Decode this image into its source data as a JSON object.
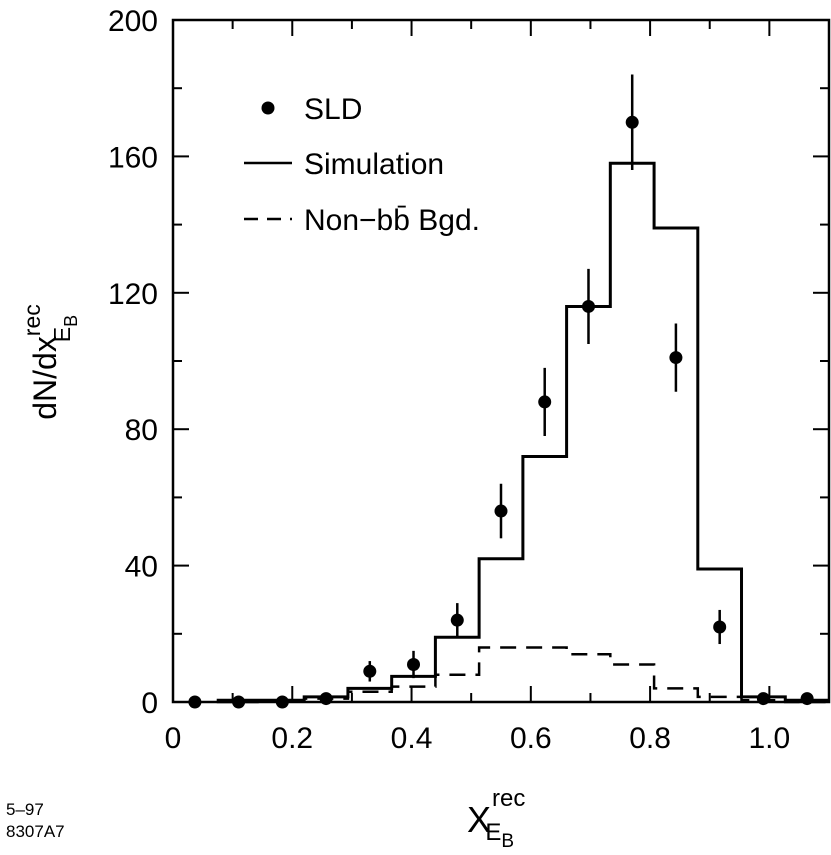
{
  "chart_data": {
    "type": "histogram+scatter",
    "title": "",
    "xlabel": {
      "base": "X",
      "sup": "rec",
      "sub": "E",
      "subsub": "B"
    },
    "ylabel": {
      "base": "dN/dx",
      "sup": "rec",
      "sub": "E",
      "subsub": "B"
    },
    "xlim": [
      0,
      1.1
    ],
    "ylim": [
      0,
      200
    ],
    "xticks": [
      0,
      0.2,
      0.4,
      0.6,
      0.8,
      1.0
    ],
    "xtick_labels": [
      "0",
      "0.2",
      "0.4",
      "0.6",
      "0.8",
      "1.0"
    ],
    "yticks": [
      0,
      40,
      80,
      120,
      160,
      200
    ],
    "ytick_labels": [
      "0",
      "40",
      "80",
      "120",
      "160",
      "200"
    ],
    "bin_edges": [
      0.0733,
      0.1467,
      0.22,
      0.2933,
      0.3667,
      0.44,
      0.5133,
      0.5867,
      0.66,
      0.7333,
      0.8067,
      0.88,
      0.9533,
      1.0267,
      1.1
    ],
    "series": [
      {
        "name": "SLD",
        "kind": "points",
        "x": [
          0.0367,
          0.11,
          0.1833,
          0.2567,
          0.33,
          0.4033,
          0.4767,
          0.55,
          0.6233,
          0.6967,
          0.77,
          0.8433,
          0.9167,
          0.99,
          1.0633
        ],
        "y": [
          0,
          0,
          0,
          1,
          9,
          11,
          24,
          56,
          88,
          116,
          170,
          101,
          22,
          1,
          1
        ],
        "err": [
          0,
          0,
          0,
          1,
          3,
          4,
          5,
          8,
          10,
          11,
          14,
          10,
          5,
          0,
          0
        ]
      },
      {
        "name": "Simulation",
        "kind": "step-solid",
        "values": [
          0.5,
          0.5,
          1.5,
          4,
          7.5,
          19,
          42,
          72,
          116,
          158,
          139,
          39,
          1.5,
          0.5
        ]
      },
      {
        "name": "Non-bb̄ Bgd.",
        "kind": "step-dashed",
        "values": [
          0,
          0.5,
          1,
          3,
          4.5,
          8,
          16,
          16,
          14,
          11,
          4,
          1.5,
          0.5,
          0
        ]
      }
    ],
    "legend": {
      "placement": "top-left",
      "entries": [
        {
          "label": "SLD",
          "marker": "point"
        },
        {
          "label": "Simulation",
          "marker": "solid"
        },
        {
          "label": "Non−bb̄ Bgd.",
          "marker": "dashed"
        }
      ]
    }
  },
  "footnote": {
    "line1": "5–97",
    "line2": "8307A7"
  }
}
